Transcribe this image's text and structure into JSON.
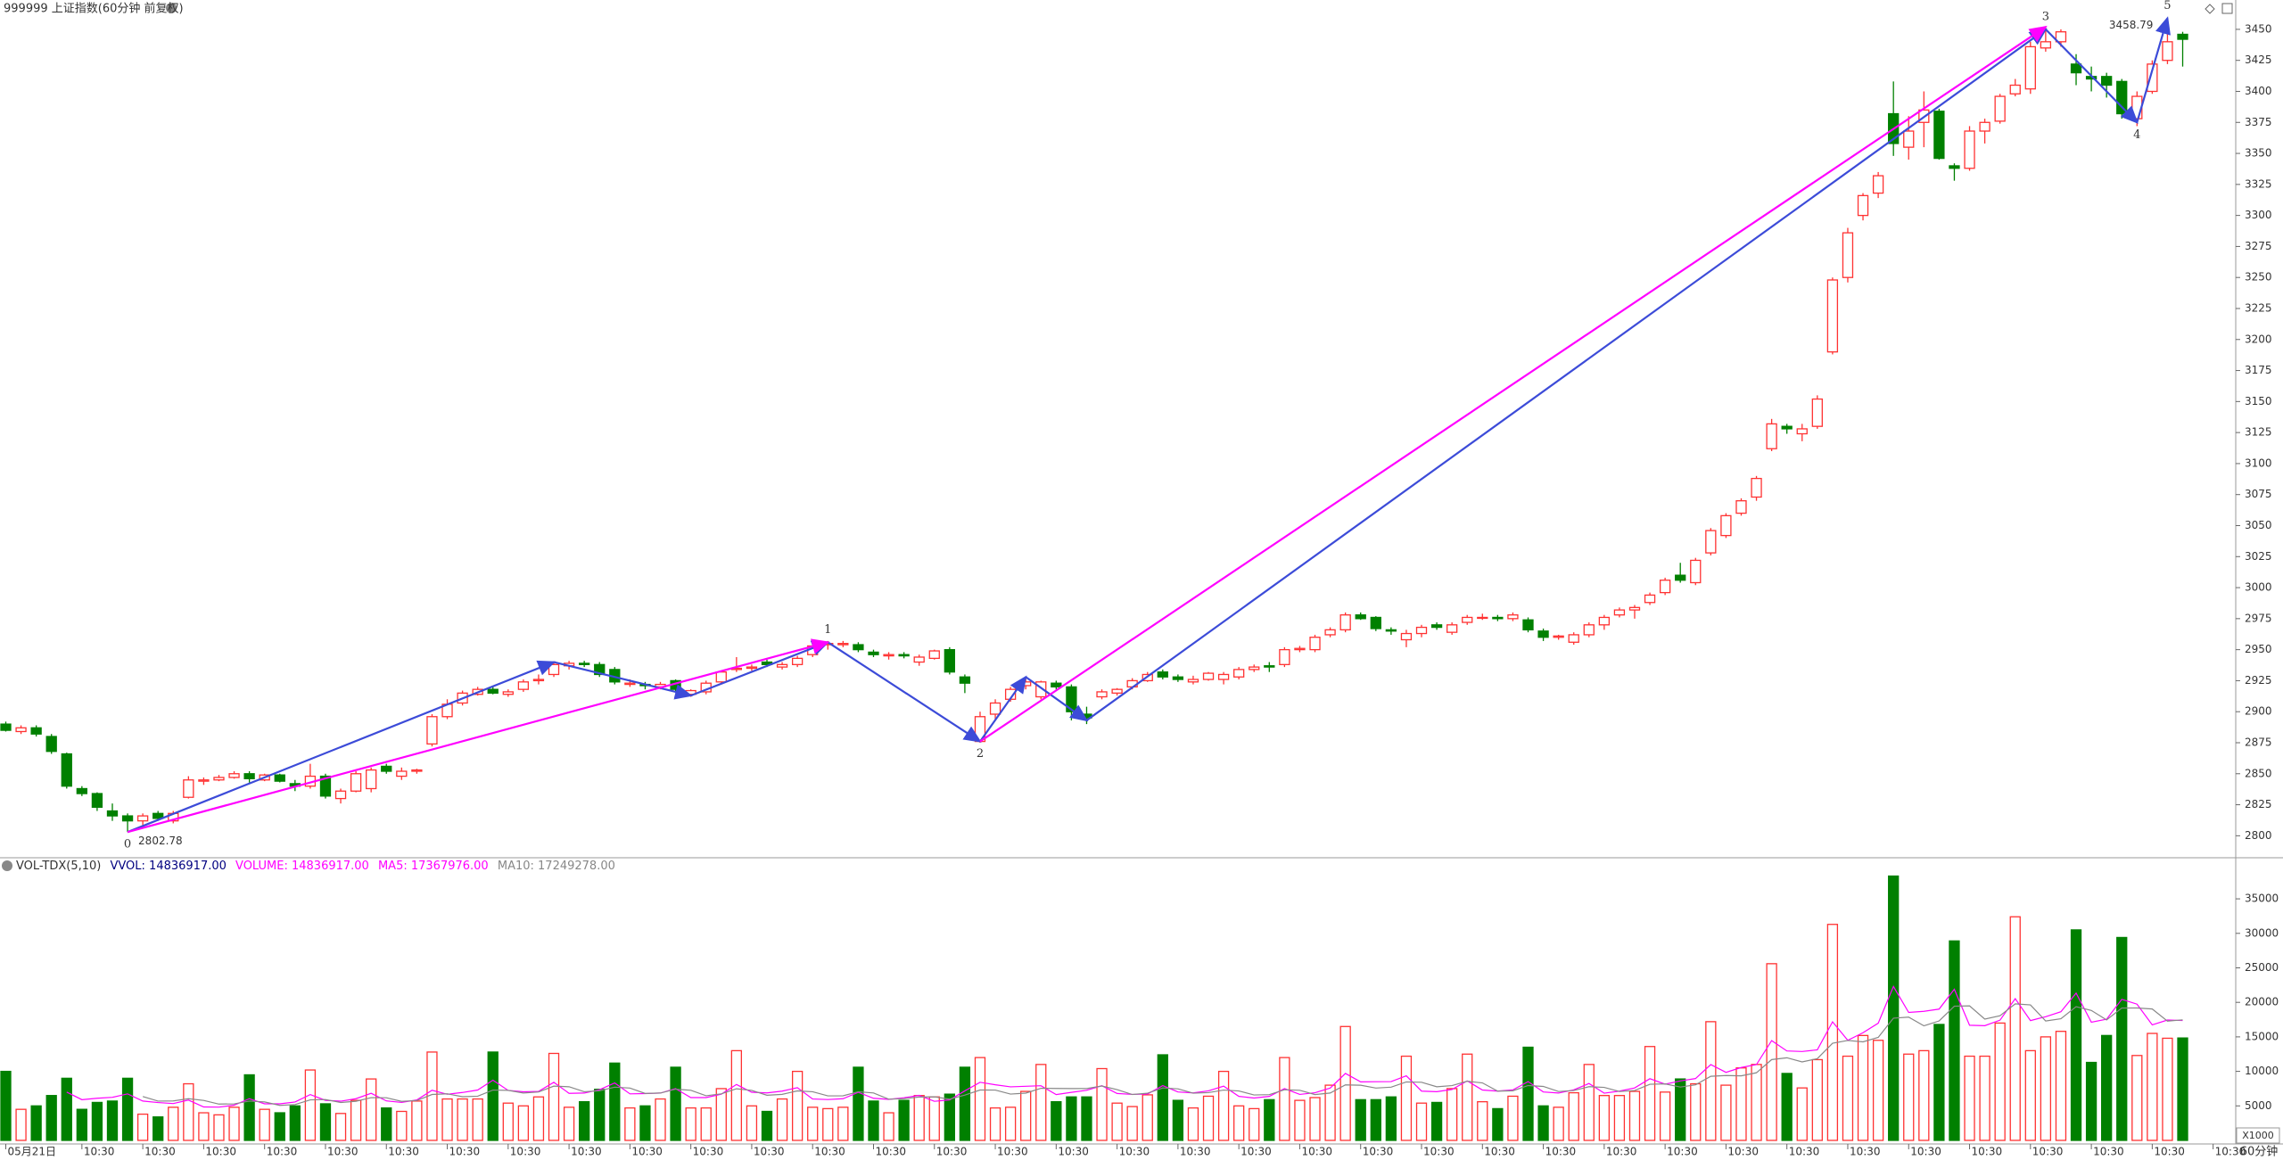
{
  "header": {
    "title": "999999 上证指数(60分钟 前复权)"
  },
  "chart_data": {
    "type": "candlestick",
    "categories": [
      "05月21日",
      null,
      null,
      null,
      null,
      "10:30",
      null,
      null,
      null,
      "10:30",
      null,
      null,
      null,
      "10:30",
      null,
      null,
      null,
      "10:30",
      null,
      null,
      null,
      "10:30",
      null,
      null,
      null,
      "10:30",
      null,
      null,
      null,
      "10:30",
      null,
      null,
      null,
      "10:30",
      null,
      null,
      null,
      "10:30",
      null,
      null,
      null,
      "10:30",
      null,
      null,
      null,
      "10:30",
      null,
      null,
      null,
      "10:30",
      null,
      null,
      null,
      "10:30",
      null,
      null,
      null,
      "10:30",
      null,
      null,
      null,
      "10:30",
      null,
      null,
      null,
      "10:30",
      null,
      null,
      null,
      "10:30",
      null,
      null,
      null,
      "10:30",
      null,
      null,
      null,
      "10:30",
      null,
      null,
      null,
      "10:30",
      null,
      null,
      null,
      "10:30",
      null,
      null,
      null,
      "10:30",
      null,
      null,
      null,
      "10:30",
      null,
      null,
      null,
      "10:30",
      null,
      null,
      null,
      "10:30",
      null,
      null,
      null,
      "10:30",
      null,
      null,
      null,
      "10:30",
      null,
      null,
      null,
      "10:30",
      null,
      null,
      null,
      "10:30",
      null,
      null,
      null,
      "10:30",
      null,
      null,
      null,
      "10:30",
      null,
      null,
      null,
      "10:30",
      null,
      null,
      null,
      "10:30",
      null,
      null,
      null,
      "10:30",
      null,
      null,
      null,
      "10:30",
      null,
      null,
      null,
      "10:30",
      null,
      null
    ],
    "candles": [
      [
        2890,
        2892,
        2884,
        2885
      ],
      [
        2884,
        2889,
        2882,
        2887
      ],
      [
        2887,
        2889,
        2880,
        2882
      ],
      [
        2880,
        2882,
        2866,
        2868
      ],
      [
        2866,
        2867,
        2838,
        2840
      ],
      [
        2838,
        2840,
        2832,
        2834
      ],
      [
        2834,
        2835,
        2820,
        2823
      ],
      [
        2820,
        2826,
        2812,
        2816
      ],
      [
        2816,
        2818,
        2803,
        2812
      ],
      [
        2812,
        2818,
        2806,
        2816
      ],
      [
        2818,
        2820,
        2812,
        2814
      ],
      [
        2812,
        2820,
        2810,
        2818
      ],
      [
        2831,
        2848,
        2830,
        2845
      ],
      [
        2844,
        2847,
        2841,
        2845
      ],
      [
        2845,
        2849,
        2844,
        2847
      ],
      [
        2847,
        2852,
        2846,
        2850
      ],
      [
        2850,
        2852,
        2843,
        2846
      ],
      [
        2845,
        2850,
        2844,
        2849
      ],
      [
        2849,
        2850,
        2843,
        2844
      ],
      [
        2842,
        2845,
        2836,
        2840
      ],
      [
        2840,
        2858,
        2838,
        2848
      ],
      [
        2848,
        2850,
        2830,
        2832
      ],
      [
        2830,
        2838,
        2826,
        2836
      ],
      [
        2836,
        2852,
        2835,
        2850
      ],
      [
        2838,
        2855,
        2835,
        2853
      ],
      [
        2856,
        2858,
        2850,
        2852
      ],
      [
        2848,
        2855,
        2845,
        2852
      ],
      [
        2852,
        2854,
        2850,
        2853
      ],
      [
        2874,
        2898,
        2872,
        2896
      ],
      [
        2896,
        2910,
        2894,
        2906
      ],
      [
        2907,
        2917,
        2905,
        2915
      ],
      [
        2914,
        2920,
        2913,
        2918
      ],
      [
        2918,
        2920,
        2914,
        2915
      ],
      [
        2914,
        2918,
        2912,
        2916
      ],
      [
        2918,
        2926,
        2916,
        2924
      ],
      [
        2925,
        2930,
        2922,
        2926
      ],
      [
        2930,
        2940,
        2928,
        2938
      ],
      [
        2937,
        2941,
        2934,
        2939
      ],
      [
        2939,
        2941,
        2936,
        2938
      ],
      [
        2938,
        2940,
        2928,
        2930
      ],
      [
        2934,
        2936,
        2922,
        2924
      ],
      [
        2922,
        2926,
        2920,
        2923
      ],
      [
        2922,
        2924,
        2918,
        2921
      ],
      [
        2920,
        2924,
        2918,
        2922
      ],
      [
        2925,
        2926,
        2916,
        2918
      ],
      [
        2914,
        2918,
        2912,
        2917
      ],
      [
        2916,
        2925,
        2914,
        2923
      ],
      [
        2924,
        2933,
        2922,
        2932
      ],
      [
        2934,
        2944,
        2932,
        2935
      ],
      [
        2935,
        2938,
        2933,
        2936
      ],
      [
        2940,
        2942,
        2936,
        2938
      ],
      [
        2936,
        2940,
        2934,
        2938
      ],
      [
        2938,
        2945,
        2936,
        2943
      ],
      [
        2946,
        2955,
        2944,
        2953
      ],
      [
        2954,
        2957,
        2950,
        2955
      ],
      [
        2954,
        2957,
        2952,
        2955
      ],
      [
        2954,
        2956,
        2948,
        2950
      ],
      [
        2948,
        2950,
        2944,
        2946
      ],
      [
        2945,
        2948,
        2942,
        2946
      ],
      [
        2946,
        2948,
        2943,
        2945
      ],
      [
        2940,
        2946,
        2937,
        2944
      ],
      [
        2943,
        2950,
        2942,
        2949
      ],
      [
        2950,
        2952,
        2930,
        2932
      ],
      [
        2928,
        2930,
        2915,
        2923
      ],
      [
        2876,
        2900,
        2875,
        2896
      ],
      [
        2898,
        2910,
        2894,
        2907
      ],
      [
        2910,
        2920,
        2908,
        2918
      ],
      [
        2921,
        2928,
        2918,
        2924
      ],
      [
        2912,
        2925,
        2910,
        2924
      ],
      [
        2923,
        2925,
        2918,
        2920
      ],
      [
        2920,
        2922,
        2893,
        2900
      ],
      [
        2898,
        2904,
        2890,
        2895
      ],
      [
        2912,
        2918,
        2910,
        2916
      ],
      [
        2915,
        2919,
        2913,
        2918
      ],
      [
        2920,
        2927,
        2918,
        2925
      ],
      [
        2925,
        2932,
        2924,
        2930
      ],
      [
        2932,
        2934,
        2926,
        2928
      ],
      [
        2928,
        2930,
        2924,
        2926
      ],
      [
        2924,
        2929,
        2922,
        2926
      ],
      [
        2926,
        2932,
        2925,
        2931
      ],
      [
        2926,
        2932,
        2922,
        2930
      ],
      [
        2928,
        2936,
        2926,
        2934
      ],
      [
        2934,
        2938,
        2932,
        2936
      ],
      [
        2937,
        2940,
        2932,
        2936
      ],
      [
        2938,
        2952,
        2936,
        2950
      ],
      [
        2950,
        2953,
        2948,
        2951
      ],
      [
        2950,
        2962,
        2948,
        2960
      ],
      [
        2962,
        2968,
        2960,
        2966
      ],
      [
        2966,
        2980,
        2964,
        2978
      ],
      [
        2978,
        2980,
        2974,
        2975
      ],
      [
        2976,
        2977,
        2965,
        2967
      ],
      [
        2966,
        2968,
        2962,
        2965
      ],
      [
        2958,
        2966,
        2952,
        2963
      ],
      [
        2963,
        2970,
        2960,
        2968
      ],
      [
        2970,
        2972,
        2966,
        2968
      ],
      [
        2964,
        2972,
        2962,
        2970
      ],
      [
        2972,
        2978,
        2970,
        2976
      ],
      [
        2976,
        2979,
        2974,
        2976
      ],
      [
        2976,
        2978,
        2973,
        2975
      ],
      [
        2975,
        2980,
        2973,
        2978
      ],
      [
        2974,
        2976,
        2964,
        2966
      ],
      [
        2965,
        2967,
        2957,
        2960
      ],
      [
        2960,
        2962,
        2958,
        2961
      ],
      [
        2956,
        2964,
        2954,
        2962
      ],
      [
        2962,
        2972,
        2960,
        2970
      ],
      [
        2970,
        2978,
        2966,
        2976
      ],
      [
        2978,
        2984,
        2976,
        2982
      ],
      [
        2982,
        2986,
        2975,
        2984
      ],
      [
        2988,
        2996,
        2986,
        2994
      ],
      [
        2996,
        3008,
        2994,
        3006
      ],
      [
        3010,
        3020,
        3004,
        3006
      ],
      [
        3004,
        3024,
        3002,
        3022
      ],
      [
        3028,
        3048,
        3026,
        3046
      ],
      [
        3042,
        3060,
        3040,
        3058
      ],
      [
        3060,
        3072,
        3058,
        3070
      ],
      [
        3073,
        3090,
        3070,
        3088
      ],
      [
        3112,
        3136,
        3110,
        3132
      ],
      [
        3130,
        3132,
        3124,
        3128
      ],
      [
        3124,
        3132,
        3118,
        3128
      ],
      [
        3130,
        3155,
        3128,
        3152
      ],
      [
        3190,
        3250,
        3188,
        3248
      ],
      [
        3250,
        3290,
        3246,
        3286
      ],
      [
        3300,
        3318,
        3296,
        3316
      ],
      [
        3318,
        3335,
        3314,
        3332
      ],
      [
        3382,
        3408,
        3348,
        3358
      ],
      [
        3355,
        3380,
        3345,
        3368
      ],
      [
        3375,
        3400,
        3355,
        3385
      ],
      [
        3384,
        3386,
        3345,
        3346
      ],
      [
        3340,
        3342,
        3328,
        3338
      ],
      [
        3338,
        3372,
        3336,
        3368
      ],
      [
        3368,
        3378,
        3358,
        3375
      ],
      [
        3376,
        3398,
        3374,
        3396
      ],
      [
        3398,
        3410,
        3396,
        3405
      ],
      [
        3402,
        3440,
        3398,
        3436
      ],
      [
        3435,
        3452,
        3432,
        3440
      ],
      [
        3440,
        3450,
        3436,
        3448
      ],
      [
        3422,
        3430,
        3405,
        3415
      ],
      [
        3412,
        3420,
        3400,
        3410
      ],
      [
        3412,
        3415,
        3395,
        3405
      ],
      [
        3408,
        3410,
        3378,
        3382
      ],
      [
        3378,
        3400,
        3372,
        3396
      ],
      [
        3400,
        3425,
        3398,
        3422
      ],
      [
        3425,
        3459,
        3422,
        3440
      ],
      [
        3446,
        3448,
        3420,
        3442
      ]
    ],
    "ylim": [
      2783,
      3460
    ],
    "yticks": [
      2800,
      2825,
      2850,
      2875,
      2900,
      2925,
      2950,
      2975,
      3000,
      3025,
      3050,
      3075,
      3100,
      3125,
      3150,
      3175,
      3200,
      3225,
      3250,
      3275,
      3300,
      3325,
      3350,
      3375,
      3400,
      3425,
      3450
    ],
    "up_color": "#ff3232",
    "down_color": "#008000",
    "waves": [
      {
        "label": "0",
        "index": 8,
        "price": 2803
      },
      {
        "label": "1",
        "index": 54,
        "price": 2956
      },
      {
        "label": "2",
        "index": 64,
        "price": 2876
      },
      {
        "label": "3",
        "index": 134,
        "price": 3450
      },
      {
        "label": "4",
        "index": 140,
        "price": 3375
      },
      {
        "label": "5",
        "index": 142,
        "price": 3459
      }
    ],
    "blue_path": {
      "color": "#3c4bd8",
      "points": [
        [
          8,
          2803
        ],
        [
          36,
          2940
        ],
        [
          45,
          2913
        ],
        [
          54,
          2956
        ],
        [
          64,
          2876
        ],
        [
          67,
          2928
        ],
        [
          71,
          2893
        ],
        [
          134,
          3450
        ],
        [
          140,
          3375
        ],
        [
          142,
          3459
        ]
      ]
    },
    "magenta_paths": {
      "color": "#ff00ff",
      "lines": [
        [
          [
            8,
            2803
          ],
          [
            54,
            2956
          ]
        ],
        [
          [
            64,
            2876
          ],
          [
            134,
            3452
          ]
        ]
      ]
    },
    "annotations": [
      {
        "index": 8,
        "value": 2802.78
      },
      {
        "index": 142,
        "value": 3458.79
      }
    ],
    "volume": {
      "indicator": "VOL-TDX(5,10)",
      "vvol": "VVOL: 14836917.00",
      "volume_text": "VOLUME: 14836917.00",
      "ma5_text": "MA5: 17367976.00",
      "ma10_text": "MA10: 17249278.00",
      "unit": "X1000",
      "values": [
        10000,
        4500,
        5000,
        6500,
        9000,
        4500,
        5500,
        5700,
        9000,
        3800,
        3400,
        4800,
        8200,
        4000,
        3700,
        4800,
        9500,
        4500,
        4000,
        5000,
        10200,
        5300,
        3900,
        5800,
        8900,
        4700,
        4200,
        5700,
        12800,
        6000,
        6000,
        6000,
        12800,
        5400,
        5000,
        6300,
        12600,
        4800,
        5600,
        7400,
        11200,
        4700,
        5000,
        6000,
        10600,
        4700,
        4700,
        7500,
        13000,
        5000,
        4200,
        6000,
        10000,
        4800,
        4600,
        4800,
        10600,
        5700,
        4000,
        5800,
        6500,
        6300,
        6700,
        10600,
        12000,
        4700,
        4800,
        7100,
        11000,
        5600,
        6300,
        6300,
        10400,
        5400,
        4900,
        6600,
        12400,
        5800,
        4700,
        6400,
        10000,
        5000,
        4600,
        5900,
        12000,
        5800,
        6200,
        8000,
        16500,
        5900,
        5900,
        6300,
        12200,
        5400,
        5500,
        7500,
        12500,
        5600,
        4600,
        6400,
        13500,
        5000,
        4800,
        6900,
        11000,
        6500,
        6500,
        7100,
        13600,
        7000,
        8900,
        8200,
        17200,
        8000,
        10500,
        11000,
        25600,
        9700,
        7600,
        11700,
        31300,
        12200,
        15200,
        14500,
        38300,
        12500,
        13000,
        16800,
        28900,
        12200,
        12200,
        17000,
        32400,
        13000,
        15000,
        15800,
        30500,
        11300,
        15200,
        29400,
        12300,
        15500,
        14800,
        14837
      ],
      "ylim": [
        0,
        38500
      ],
      "yticks": [
        5000,
        10000,
        15000,
        20000,
        25000,
        30000,
        35000
      ]
    },
    "period": "60分钟"
  }
}
